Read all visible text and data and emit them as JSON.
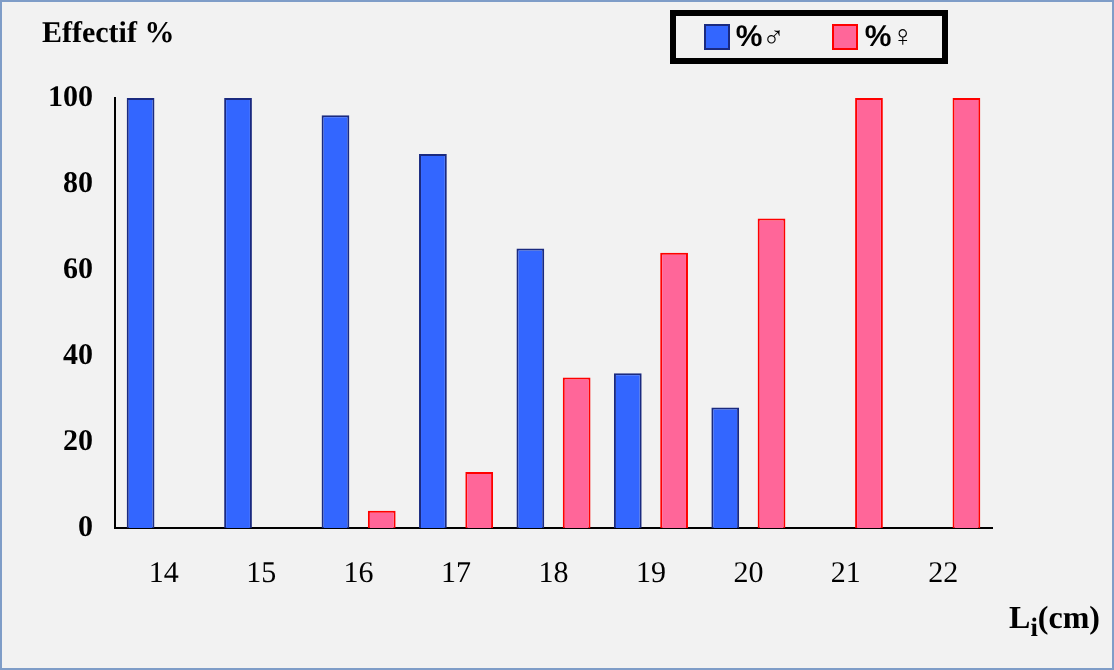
{
  "chart_data": {
    "type": "bar",
    "ylabel": "Effectif %",
    "xlabel": "L$_{i}$(cm)",
    "categories": [
      "14",
      "15",
      "16",
      "17",
      "18",
      "19",
      "20",
      "21",
      "22"
    ],
    "series": [
      {
        "name": "%♂",
        "color": "#3366ff",
        "values": [
          100,
          100,
          96,
          87,
          65,
          36,
          28,
          0,
          0
        ]
      },
      {
        "name": "%♀",
        "color": "#ff6699",
        "values": [
          0,
          0,
          4,
          13,
          35,
          64,
          72,
          100,
          100
        ]
      }
    ],
    "ylim": [
      0,
      100
    ],
    "yticks": [
      0,
      20,
      40,
      60,
      80,
      100
    ],
    "grid": false,
    "legend": "top right"
  }
}
